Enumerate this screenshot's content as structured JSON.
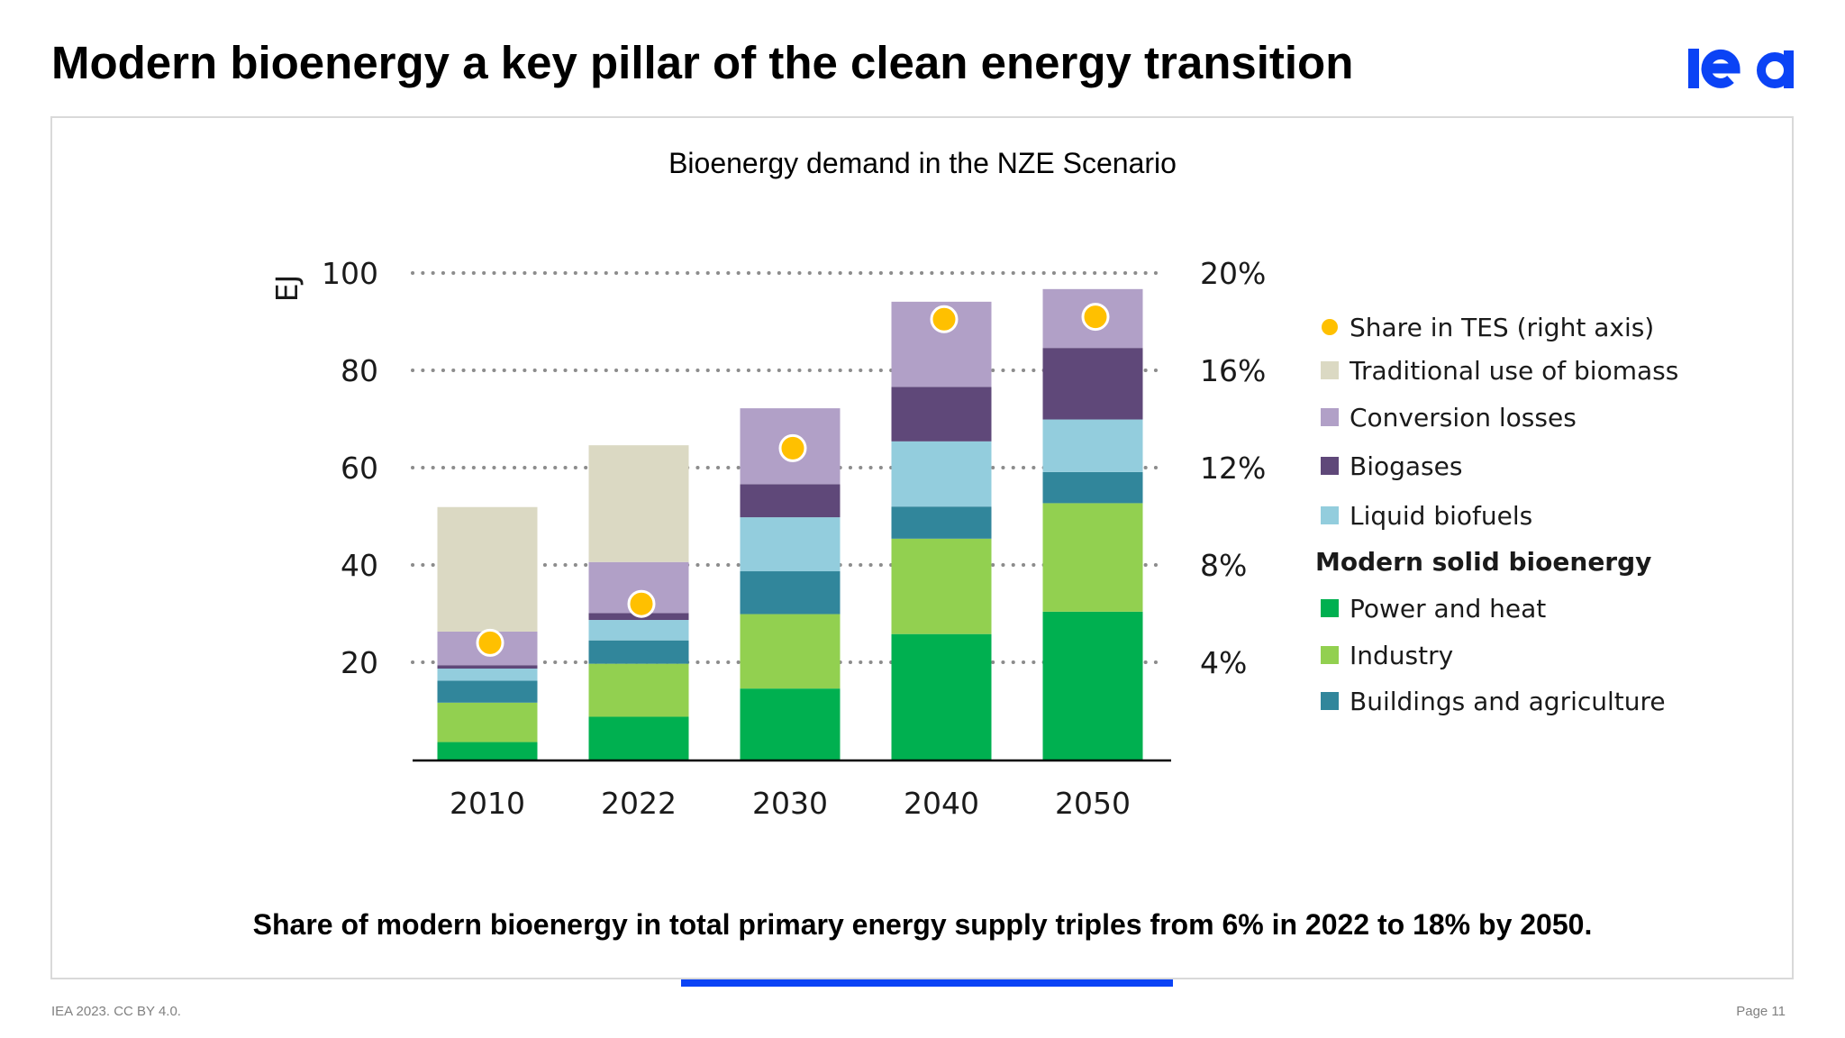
{
  "slide": {
    "title": "Modern bioenergy a key pillar of the clean energy transition",
    "logo_text": "iea",
    "takeaway": "Share of modern bioenergy in total primary energy supply triples from 6% in 2022 to 18% by 2050.",
    "footer_left": "IEA 2023. CC BY 4.0.",
    "footer_right": "Page 11",
    "colors": {
      "brand_blue": "#0b43f5",
      "frame_border": "#d9d9d9",
      "footer_text": "#808080"
    }
  },
  "chart_data": {
    "type": "bar",
    "stacked": true,
    "title": "Bioenergy demand in the NZE Scenario",
    "xlabel": "",
    "ylabel": "EJ",
    "y2label": "Share in TES",
    "categories": [
      "2010",
      "2022",
      "2030",
      "2040",
      "2050"
    ],
    "ylim": [
      0,
      100
    ],
    "yticks": [
      20,
      40,
      60,
      80,
      100
    ],
    "ytick_labels": [
      "20",
      "40",
      "60",
      "80",
      "100"
    ],
    "y2lim": [
      0,
      20
    ],
    "y2ticks": [
      4,
      8,
      12,
      16,
      20
    ],
    "y2tick_labels": [
      "4%",
      "8%",
      "12%",
      "16%",
      "20%"
    ],
    "grid": "horizontal dotted",
    "legend_position": "right",
    "series": [
      {
        "name": "Power and heat",
        "group": "Modern solid bioenergy",
        "color": "#00b050",
        "values": [
          3.6,
          8.8,
          14.6,
          25.8,
          30.4
        ]
      },
      {
        "name": "Industry",
        "group": "Modern solid bioenergy",
        "color": "#92d050",
        "values": [
          8.1,
          10.9,
          15.3,
          19.6,
          22.3
        ]
      },
      {
        "name": "Buildings and agriculture",
        "group": "Modern solid bioenergy",
        "color": "#31869b",
        "values": [
          4.5,
          4.8,
          8.8,
          6.6,
          6.4
        ]
      },
      {
        "name": "Liquid biofuels",
        "color": "#93cddd",
        "values": [
          2.5,
          4.2,
          11.1,
          13.4,
          10.8
        ]
      },
      {
        "name": "Biogases",
        "color": "#5f4879",
        "values": [
          0.7,
          1.4,
          6.8,
          11.2,
          14.7
        ]
      },
      {
        "name": "Conversion losses",
        "color": "#b1a0c7",
        "values": [
          6.9,
          10.5,
          15.6,
          17.5,
          12.1
        ]
      },
      {
        "name": "Traditional use of biomass",
        "color": "#dbd9c3",
        "values": [
          25.6,
          24.0,
          0,
          0,
          0
        ]
      }
    ],
    "line_series": {
      "name": "Share in TES (right axis)",
      "axis": "right",
      "unit": "%",
      "color": "#ffc000",
      "values": [
        4.8,
        6.4,
        12.8,
        18.1,
        18.2
      ]
    },
    "legend": [
      {
        "label": "Share in TES (right axis)",
        "color": "#ffc000",
        "shape": "dot"
      },
      {
        "label": "Traditional use of biomass",
        "color": "#dbd9c3",
        "shape": "square"
      },
      {
        "label": "Conversion losses",
        "color": "#b1a0c7",
        "shape": "square"
      },
      {
        "label": "Biogases",
        "color": "#5f4879",
        "shape": "square"
      },
      {
        "label": "Liquid biofuels",
        "color": "#93cddd",
        "shape": "square"
      },
      {
        "label": "Modern solid bioenergy",
        "shape": "header"
      },
      {
        "label": "Power and heat",
        "color": "#00b050",
        "shape": "square"
      },
      {
        "label": "Industry",
        "color": "#92d050",
        "shape": "square"
      },
      {
        "label": "Buildings and agriculture",
        "color": "#31869b",
        "shape": "square"
      }
    ]
  }
}
